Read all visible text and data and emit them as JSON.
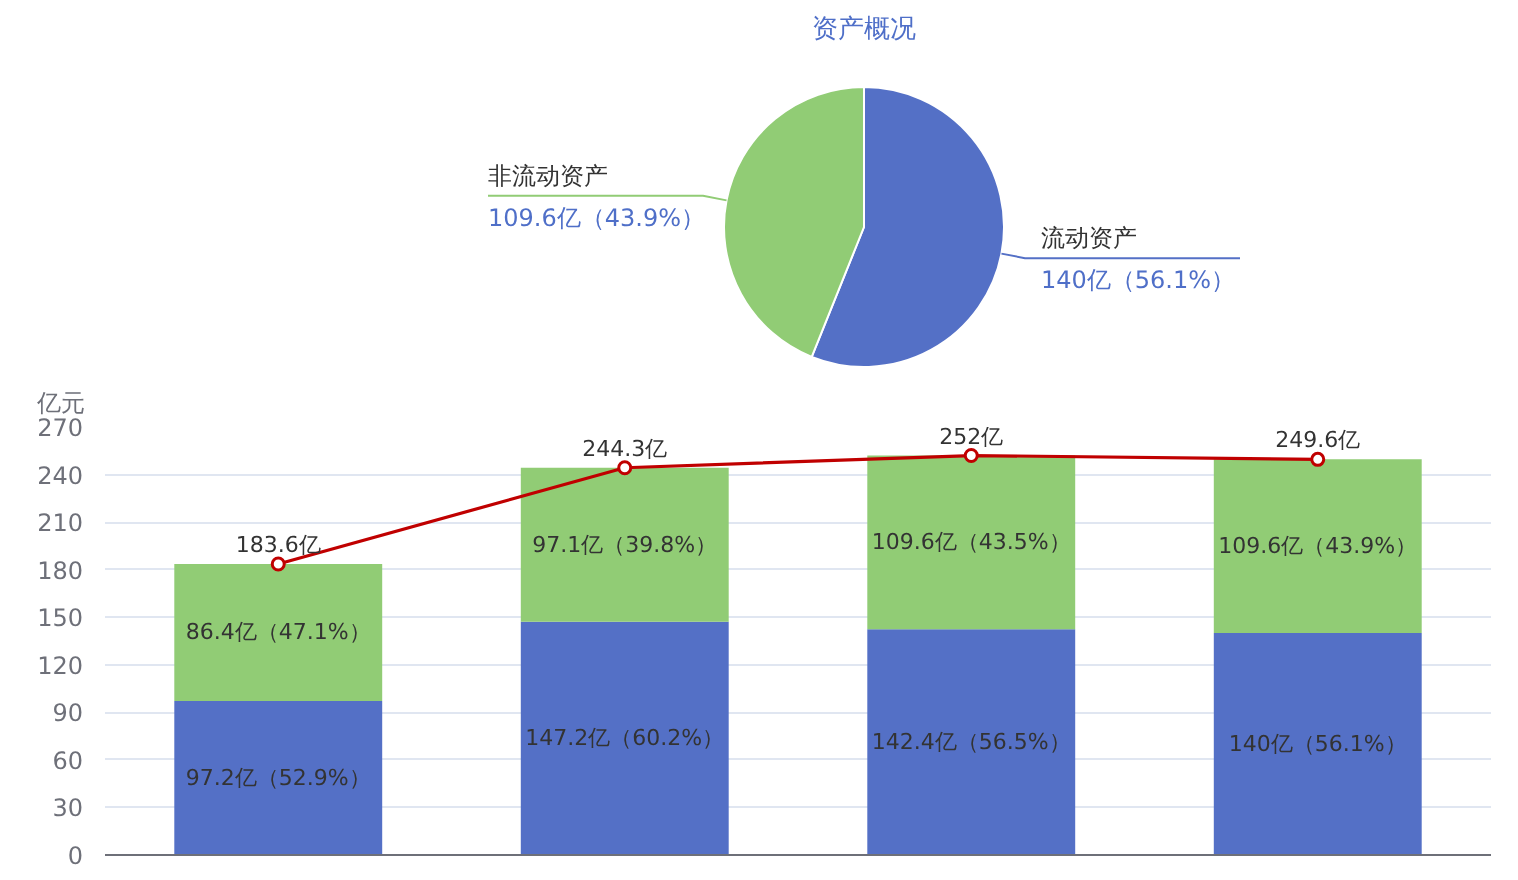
{
  "chart_data": [
    {
      "type": "pie",
      "title": "资产概况",
      "categories": [
        "流动资产",
        "非流动资产"
      ],
      "values": [
        140,
        109.6
      ],
      "colors": [
        "#5470c6",
        "#91cc75"
      ],
      "value_labels": [
        "140亿（56.1%）",
        "109.6亿（43.9%）"
      ]
    },
    {
      "type": "bar",
      "stacked": true,
      "ylabel": "亿元",
      "categories": [
        null,
        null,
        null,
        null
      ],
      "ylim": [
        0,
        270
      ],
      "yticks": [
        0,
        30,
        60,
        90,
        120,
        150,
        180,
        210,
        240,
        270
      ],
      "grid": "y",
      "tick_labels": "y",
      "marker": "circle",
      "series": [
        {
          "color": "#5470c6",
          "values": [
            97.2,
            147.2,
            142.4,
            140
          ],
          "value_labels": [
            "97.2亿（52.9%）",
            "147.2亿（60.2%）",
            "142.4亿（56.5%）",
            "140亿（56.1%）"
          ]
        },
        {
          "color": "#91cc75",
          "values": [
            86.4,
            97.1,
            109.6,
            109.6
          ],
          "value_labels": [
            "86.4亿（47.1%）",
            "97.1亿（39.8%）",
            "109.6亿（43.5%）",
            "109.6亿（43.9%）"
          ]
        },
        {
          "type": "line",
          "color": "#c00000",
          "values": [
            183.6,
            244.3,
            252,
            249.6
          ],
          "value_labels": [
            "183.6亿",
            "244.3亿",
            "252亿",
            "249.6亿"
          ]
        }
      ]
    }
  ]
}
